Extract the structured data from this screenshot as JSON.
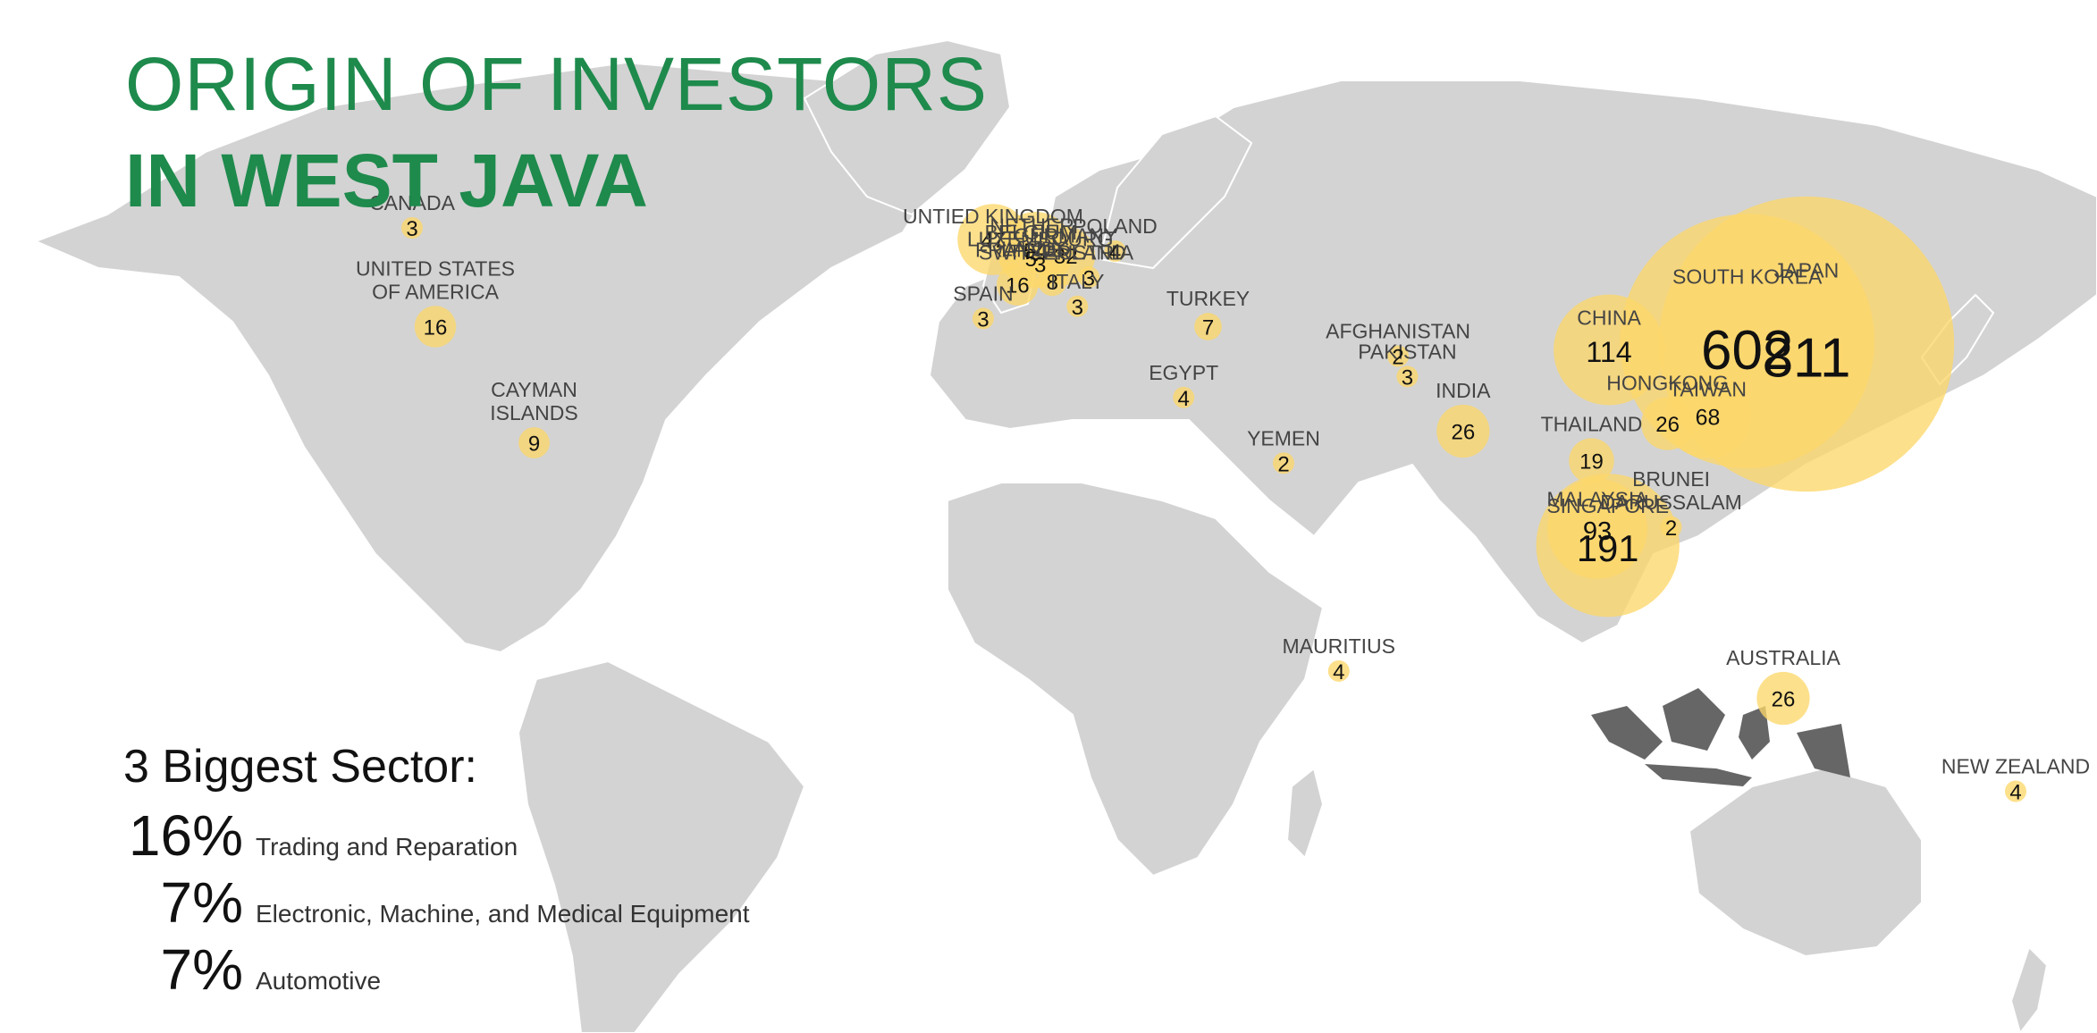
{
  "title": {
    "line1": "ORIGIN OF INVESTORS",
    "line2": "IN WEST JAVA"
  },
  "colors": {
    "title": "#1e8a4c",
    "land": "#d3d3d3",
    "indonesia": "#666666",
    "bubble": "#fcd76a",
    "text": "#111111"
  },
  "sectors": {
    "title": "3 Biggest Sector:",
    "items": [
      {
        "pct": "16%",
        "name": "Trading and Reparation"
      },
      {
        "pct": "7%",
        "name": "Electronic, Machine, and Medical Equipment"
      },
      {
        "pct": "7%",
        "name": "Automotive"
      }
    ]
  },
  "chart_data": {
    "type": "map",
    "unit": "investors",
    "highlighted_region": "Indonesia",
    "countries": [
      {
        "label": "CANADA",
        "value": 3,
        "lon": -102,
        "lat": 56
      },
      {
        "label": "UNITED STATES\nOF AMERICA",
        "value": 16,
        "lon": -98,
        "lat": 39
      },
      {
        "label": "CAYMAN\nISLANDS",
        "value": 9,
        "lon": -81,
        "lat": 19
      },
      {
        "label": "UNTIED KINGDOM",
        "value": 47,
        "lon": -2,
        "lat": 54
      },
      {
        "label": "NETHER-\nLANDS",
        "value": 54,
        "lon": 5.3,
        "lat": 52.2
      },
      {
        "label": "GERMANY",
        "value": 32,
        "lon": 10.5,
        "lat": 51.2
      },
      {
        "label": "POLAND",
        "value": 4,
        "lon": 19,
        "lat": 52
      },
      {
        "label": "BELGIUM",
        "value": 5,
        "lon": 4.5,
        "lat": 50.8
      },
      {
        "label": "LUXEMBOURG",
        "value": 3,
        "lon": 6.1,
        "lat": 49.8
      },
      {
        "label": "SPAIN",
        "value": 3,
        "lon": -3.7,
        "lat": 40.4
      },
      {
        "label": "FRANCE",
        "value": 16,
        "lon": 2.2,
        "lat": 46.2
      },
      {
        "label": "AUSTRIA",
        "value": 3,
        "lon": 14.5,
        "lat": 47.5
      },
      {
        "label": "ITALY",
        "value": 3,
        "lon": 12.5,
        "lat": 42.5
      },
      {
        "label": "SWITZERLAND",
        "value": 8,
        "lon": 8.2,
        "lat": 46.8
      },
      {
        "label": "TURKEY",
        "value": 7,
        "lon": 35,
        "lat": 39
      },
      {
        "label": "EGYPT",
        "value": 4,
        "lon": 30.8,
        "lat": 26.8
      },
      {
        "label": "AFGHANISTAN",
        "value": 2,
        "lon": 67.7,
        "lat": 33.9
      },
      {
        "label": "PAKISTAN",
        "value": 3,
        "lon": 69.3,
        "lat": 30.4
      },
      {
        "label": "YEMEN",
        "value": 2,
        "lon": 48,
        "lat": 15.5
      },
      {
        "label": "INDIA",
        "value": 26,
        "lon": 78.9,
        "lat": 21
      },
      {
        "label": "MAURITIUS",
        "value": 4,
        "lon": 57.5,
        "lat": -20.3
      },
      {
        "label": "CHINA",
        "value": 114,
        "lon": 104,
        "lat": 35
      },
      {
        "label": "SOUTH KOREA",
        "value": 602,
        "lon": 127.8,
        "lat": 36.5
      },
      {
        "label": "JAPAN",
        "value": 811,
        "lon": 138,
        "lat": 36
      },
      {
        "label": "HONGKONG",
        "value": 26,
        "lon": 114.1,
        "lat": 22.3
      },
      {
        "label": "TAIWAN",
        "value": 68,
        "lon": 121,
        "lat": 23.7
      },
      {
        "label": "THAILAND",
        "value": 19,
        "lon": 101,
        "lat": 15.9
      },
      {
        "label": "MALAYSIA",
        "value": 93,
        "lon": 102,
        "lat": 4.2
      },
      {
        "label": "BRUNEI\nDARUSSALAM",
        "value": 2,
        "lon": 114.7,
        "lat": 4.5
      },
      {
        "label": "SINGAPORE",
        "value": 191,
        "lon": 103.8,
        "lat": 1.35
      },
      {
        "label": "AUSTRALIA",
        "value": 26,
        "lon": 134,
        "lat": -25
      },
      {
        "label": "NEW ZEALAND",
        "value": 4,
        "lon": 174,
        "lat": -41
      }
    ]
  }
}
